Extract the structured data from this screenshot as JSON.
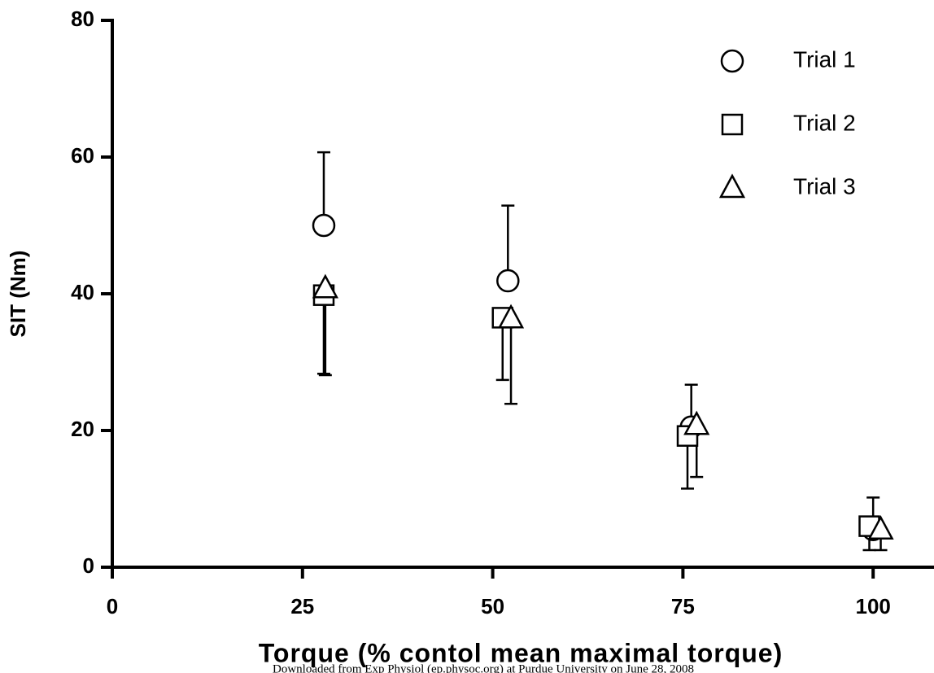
{
  "chart_data": {
    "type": "scatter",
    "xlabel": "Torque (% contol mean maximal torque)",
    "ylabel": "SIT (Nm)",
    "note": "Downloaded from Exp Physiol (ep.physoc.org) at Purdue University on June 28, 2008",
    "xlim": [
      0,
      108
    ],
    "xticks": [
      0,
      25,
      50,
      75,
      100
    ],
    "ylim": [
      0,
      80
    ],
    "yticks": [
      0,
      20,
      40,
      60,
      80
    ],
    "legend": "top-right",
    "series": [
      {
        "name": "Trial 1",
        "marker": "circle",
        "color": "#000000",
        "error_direction": "up",
        "x": [
          27.8,
          52.0,
          76.1,
          100.0
        ],
        "values": [
          50.0,
          41.9,
          20.5,
          5.5
        ],
        "errors": [
          10.7,
          11.0,
          6.2,
          4.7
        ]
      },
      {
        "name": "Trial 2",
        "marker": "square",
        "color": "#000000",
        "error_direction": "down",
        "x": [
          27.8,
          51.3,
          75.6,
          99.5
        ],
        "values": [
          39.8,
          36.5,
          19.2,
          6.0
        ],
        "errors": [
          11.5,
          9.1,
          7.7,
          3.5
        ]
      },
      {
        "name": "Trial 3",
        "marker": "triangle",
        "color": "#000000",
        "error_direction": "down",
        "x": [
          28.0,
          52.4,
          76.8,
          101.0
        ],
        "values": [
          40.8,
          36.4,
          20.8,
          5.5
        ],
        "errors": [
          12.7,
          12.5,
          7.6,
          3.0
        ]
      }
    ]
  }
}
